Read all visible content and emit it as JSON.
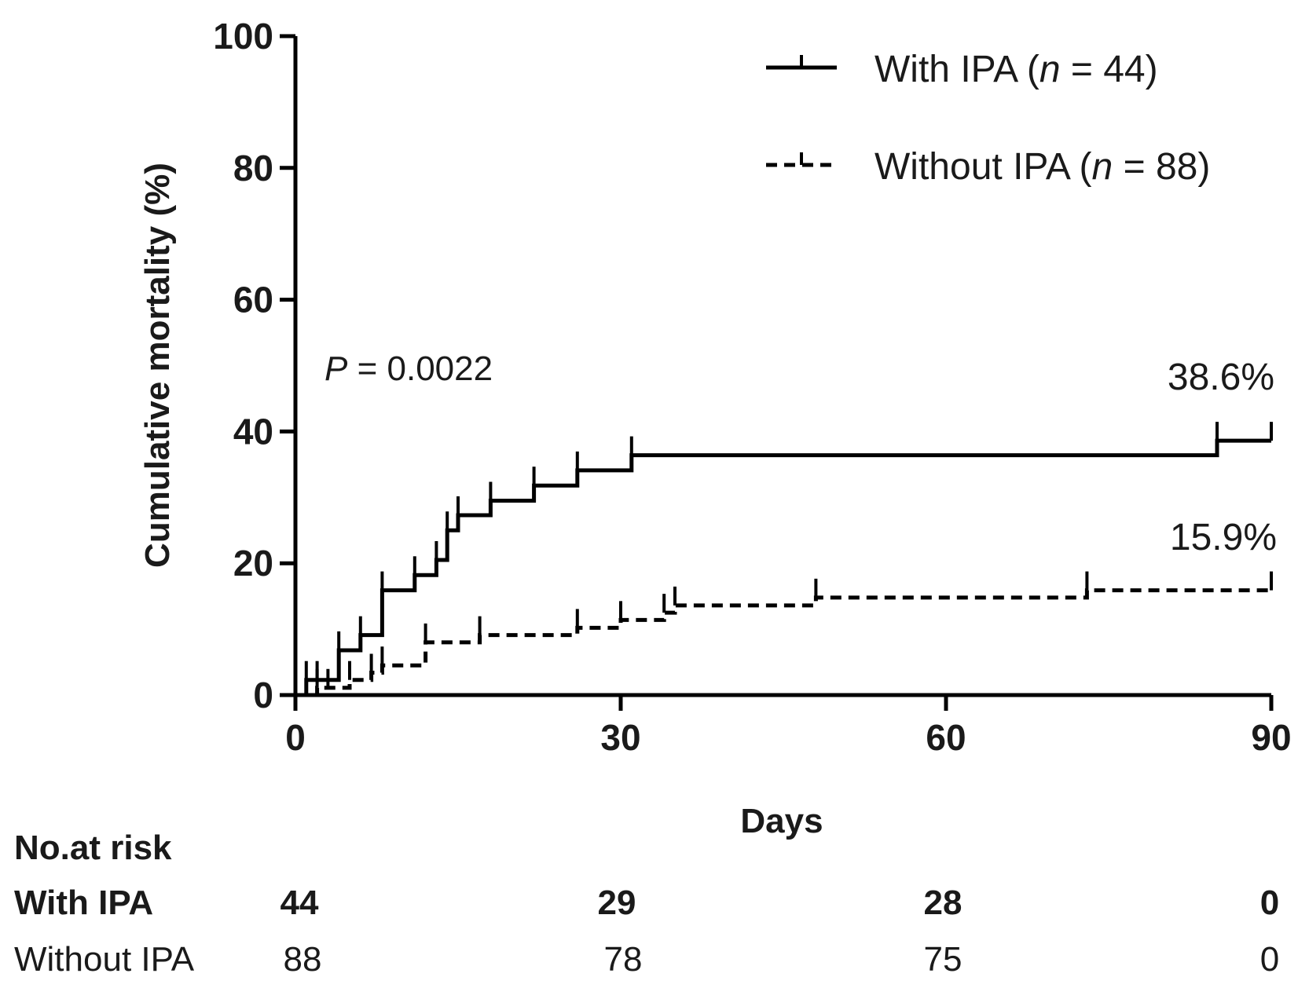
{
  "chart_data": {
    "type": "line",
    "subtype": "kaplan-meier-cumulative-incidence",
    "xlabel": "Days",
    "ylabel": "Cumulative mortality (%)",
    "xlim": [
      0,
      90
    ],
    "ylim": [
      0,
      100
    ],
    "xticks": [
      0,
      30,
      60,
      90
    ],
    "yticks": [
      0,
      20,
      40,
      60,
      80,
      100
    ],
    "xtick_labels": [
      "0",
      "30",
      "60",
      "90"
    ],
    "ytick_labels": [
      "0",
      "20",
      "40",
      "60",
      "80",
      "100"
    ],
    "grid": false,
    "legend_position": "top-right",
    "annotations": {
      "p_prefix": "P",
      "p_value": " = 0.0022",
      "with_final": "38.6%",
      "without_final": "15.9%"
    },
    "series": [
      {
        "name": "With IPA",
        "legend_prefix": "With IPA (",
        "legend_n": "n",
        "legend_suffix": " = 44)",
        "style": "solid",
        "color": "#000000",
        "steps": [
          [
            0,
            0
          ],
          [
            1,
            2.3
          ],
          [
            4,
            6.8
          ],
          [
            6,
            9.1
          ],
          [
            8,
            15.9
          ],
          [
            11,
            18.2
          ],
          [
            13,
            20.5
          ],
          [
            14,
            25.0
          ],
          [
            15,
            27.3
          ],
          [
            18,
            29.5
          ],
          [
            22,
            31.8
          ],
          [
            26,
            34.1
          ],
          [
            31,
            36.4
          ],
          [
            85,
            38.6
          ]
        ],
        "censor_times": [
          1,
          2,
          4,
          6,
          8,
          11,
          13,
          14,
          15,
          18,
          22,
          26,
          31,
          85,
          90
        ]
      },
      {
        "name": "Without IPA",
        "legend_prefix": "Without IPA (",
        "legend_n": "n",
        "legend_suffix": " = 88)",
        "style": "dashed",
        "color": "#000000",
        "steps": [
          [
            0,
            0
          ],
          [
            2,
            1.1
          ],
          [
            5,
            2.3
          ],
          [
            7,
            3.4
          ],
          [
            8,
            4.5
          ],
          [
            12,
            8.0
          ],
          [
            17,
            9.1
          ],
          [
            26,
            10.2
          ],
          [
            30,
            11.4
          ],
          [
            34,
            12.5
          ],
          [
            35,
            13.6
          ],
          [
            48,
            14.8
          ],
          [
            73,
            15.9
          ]
        ],
        "censor_times": [
          2,
          3,
          5,
          7,
          8,
          12,
          17,
          26,
          30,
          34,
          35,
          48,
          73,
          90
        ]
      }
    ],
    "risk_table": {
      "title": "No.at risk",
      "times": [
        0,
        30,
        60,
        90
      ],
      "rows": [
        {
          "label": "With IPA",
          "values": [
            "44",
            "29",
            "28",
            "0"
          ]
        },
        {
          "label": "Without IPA",
          "values": [
            "88",
            "78",
            "75",
            "0"
          ]
        }
      ]
    }
  }
}
